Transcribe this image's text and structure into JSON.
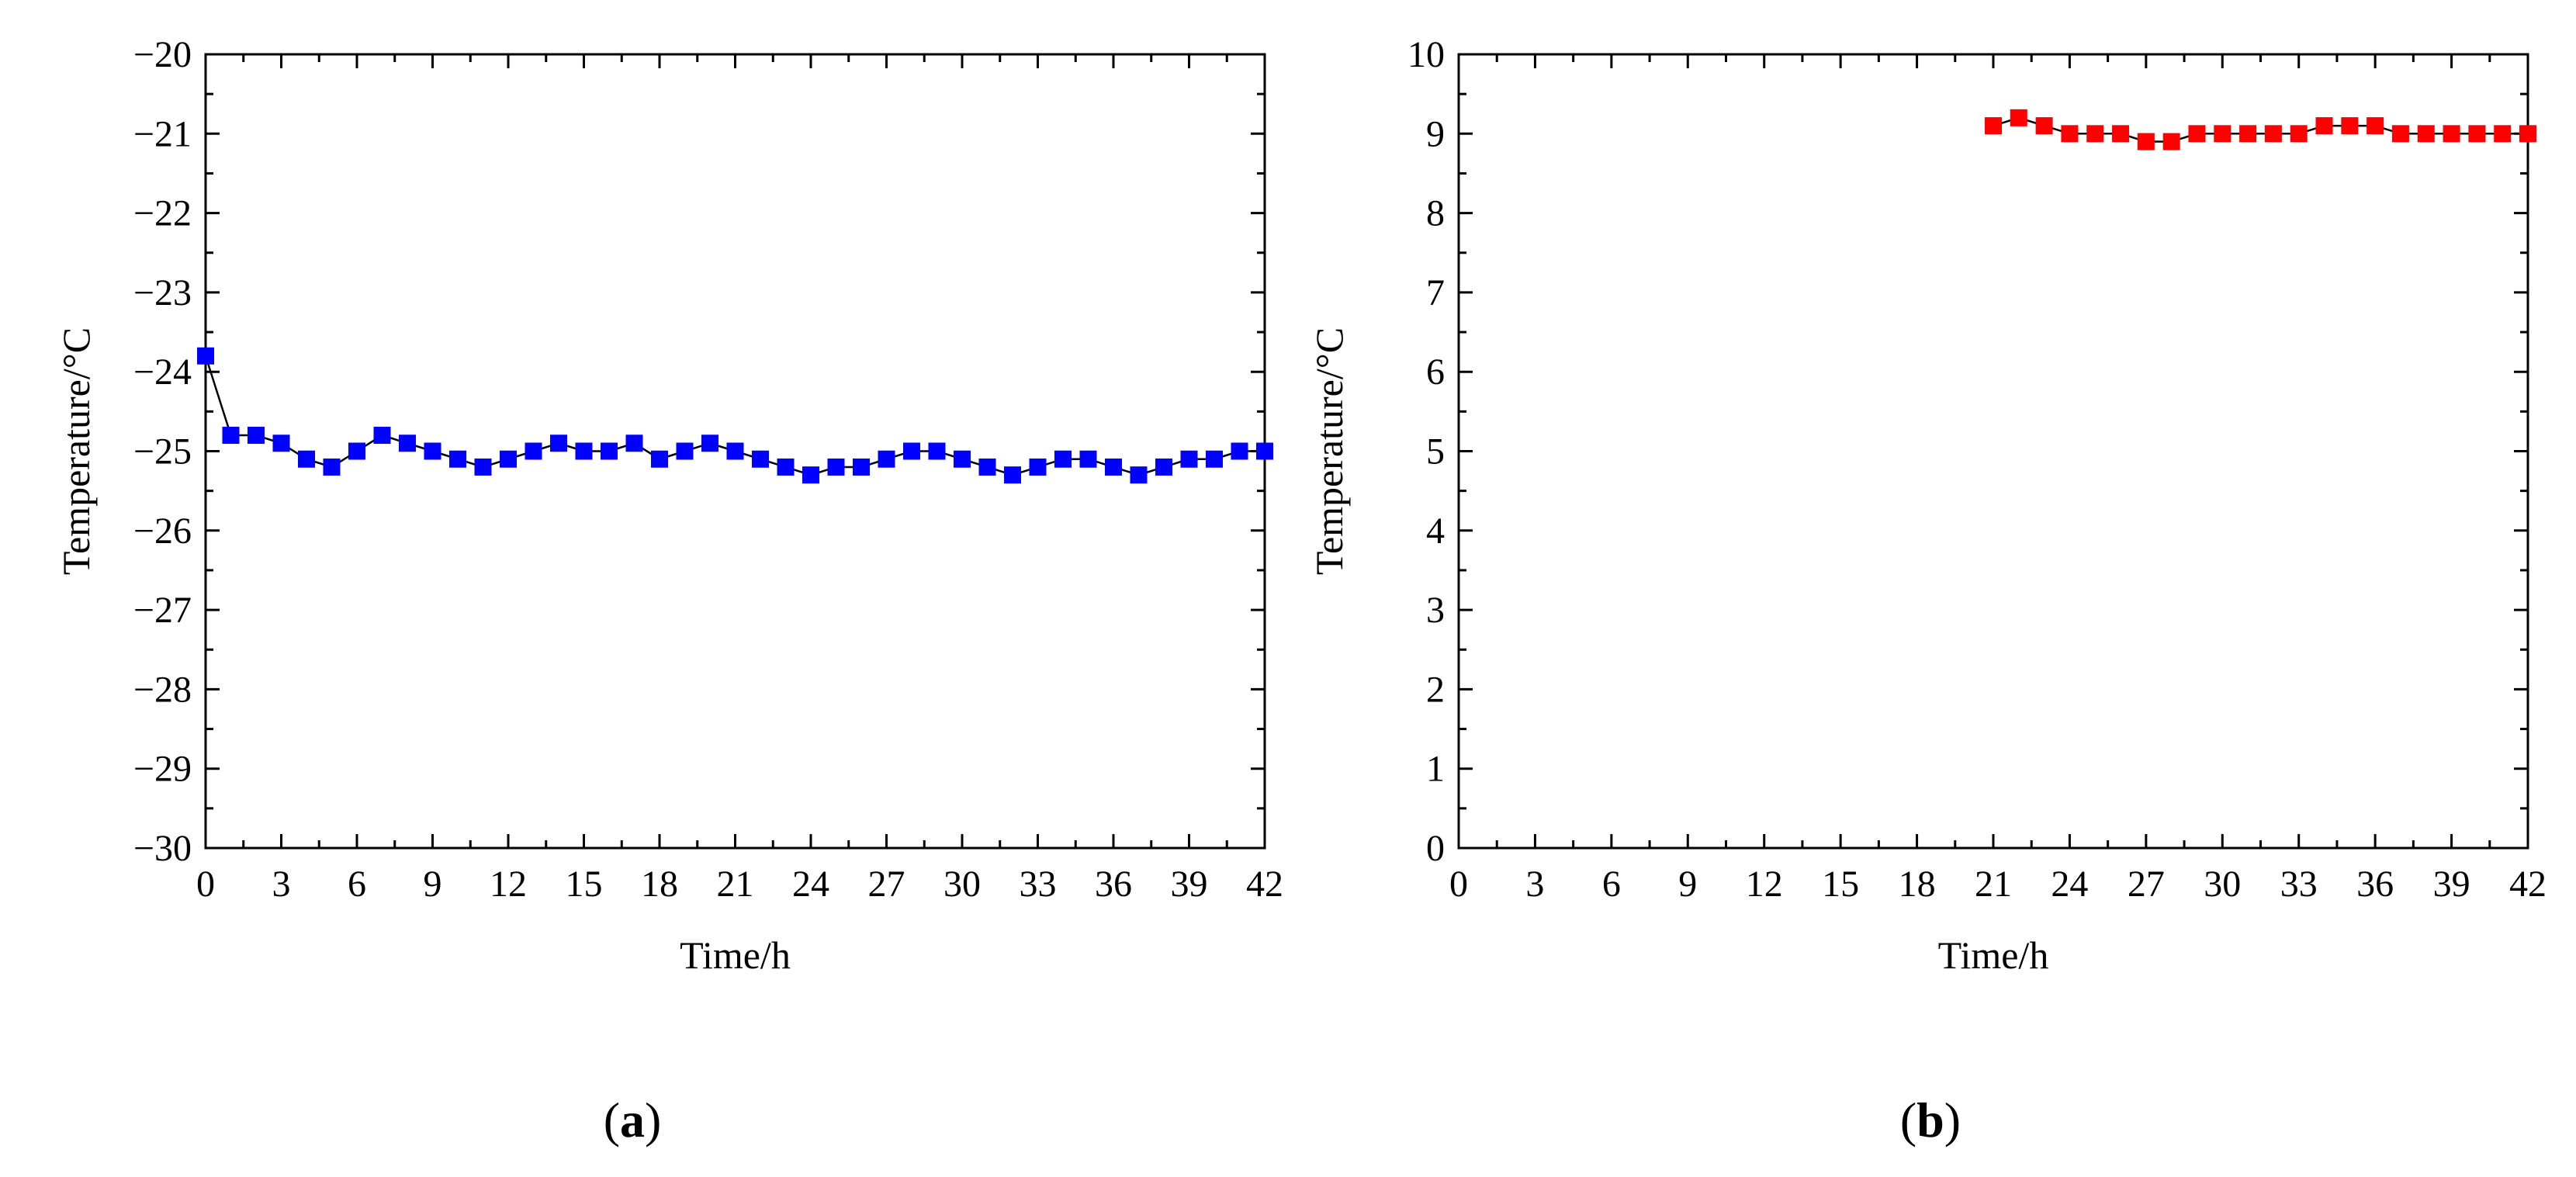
{
  "panels": [
    {
      "label_open": "(",
      "label_letter": "a",
      "label_close": ")"
    },
    {
      "label_open": "(",
      "label_letter": "b",
      "label_close": ")"
    }
  ],
  "chart_data": [
    {
      "type": "line",
      "xlabel": "Time/h",
      "ylabel": "Temperature/°C",
      "xlim": [
        0,
        42
      ],
      "ylim": [
        -30,
        -20
      ],
      "xticks": [
        0,
        3,
        6,
        9,
        12,
        15,
        18,
        21,
        24,
        27,
        30,
        33,
        36,
        39,
        42
      ],
      "yticks": [
        -30,
        -29,
        -28,
        -27,
        -26,
        -25,
        -24,
        -23,
        -22,
        -21,
        -20
      ],
      "xtick_labels": [
        "0",
        "3",
        "6",
        "9",
        "12",
        "15",
        "18",
        "21",
        "24",
        "27",
        "30",
        "33",
        "36",
        "39",
        "42"
      ],
      "ytick_labels": [
        "−30",
        "−29",
        "−28",
        "−27",
        "−26",
        "−25",
        "−24",
        "−23",
        "−22",
        "−21",
        "−20"
      ],
      "grid": false,
      "marker": "square",
      "color": "#0000ff",
      "line_color": "#000000",
      "series": [
        {
          "x": [
            0,
            1,
            2,
            3,
            4,
            5,
            6,
            7,
            8,
            9,
            10,
            11,
            12,
            13,
            14,
            15,
            16,
            17,
            18,
            19,
            20,
            21,
            22,
            23,
            24,
            25,
            26,
            27,
            28,
            29,
            30,
            31,
            32,
            33,
            34,
            35,
            36,
            37,
            38,
            39,
            40,
            41,
            42
          ],
          "y": [
            -23.8,
            -24.8,
            -24.8,
            -24.9,
            -25.1,
            -25.2,
            -25.0,
            -24.8,
            -24.9,
            -25.0,
            -25.1,
            -25.2,
            -25.1,
            -25.0,
            -24.9,
            -25.0,
            -25.0,
            -24.9,
            -25.1,
            -25.0,
            -24.9,
            -25.0,
            -25.1,
            -25.2,
            -25.3,
            -25.2,
            -25.2,
            -25.1,
            -25.0,
            -25.0,
            -25.1,
            -25.2,
            -25.3,
            -25.2,
            -25.1,
            -25.1,
            -25.2,
            -25.3,
            -25.2,
            -25.1,
            -25.1,
            -25.0,
            -25.0
          ]
        }
      ]
    },
    {
      "type": "line",
      "xlabel": "Time/h",
      "ylabel": "Temperature/°C",
      "xlim": [
        0,
        42
      ],
      "ylim": [
        0,
        10
      ],
      "xticks": [
        0,
        3,
        6,
        9,
        12,
        15,
        18,
        21,
        24,
        27,
        30,
        33,
        36,
        39,
        42
      ],
      "yticks": [
        0,
        1,
        2,
        3,
        4,
        5,
        6,
        7,
        8,
        9,
        10
      ],
      "xtick_labels": [
        "0",
        "3",
        "6",
        "9",
        "12",
        "15",
        "18",
        "21",
        "24",
        "27",
        "30",
        "33",
        "36",
        "39",
        "42"
      ],
      "ytick_labels": [
        "0",
        "1",
        "2",
        "3",
        "4",
        "5",
        "6",
        "7",
        "8",
        "9",
        "10"
      ],
      "grid": false,
      "marker": "square",
      "color": "#ff0000",
      "line_color": "#000000",
      "series": [
        {
          "x": [
            21,
            22,
            23,
            24,
            25,
            26,
            27,
            28,
            29,
            30,
            31,
            32,
            33,
            34,
            35,
            36,
            37,
            38,
            39,
            40,
            41,
            42
          ],
          "y": [
            9.1,
            9.2,
            9.1,
            9.0,
            9.0,
            9.0,
            8.9,
            8.9,
            9.0,
            9.0,
            9.0,
            9.0,
            9.0,
            9.1,
            9.1,
            9.1,
            9.0,
            9.0,
            9.0,
            9.0,
            9.0,
            9.0
          ]
        }
      ]
    }
  ]
}
